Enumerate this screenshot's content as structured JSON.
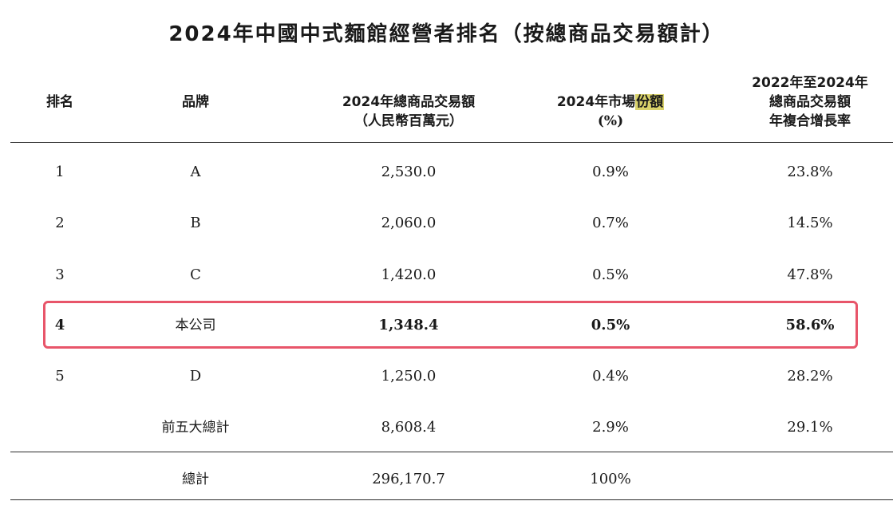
{
  "title": "2024年中國中式麵館經營者排名（按總商品交易額計）",
  "headers": {
    "rank": "排名",
    "brand": "品牌",
    "gmv_line1": "2024年總商品交易額",
    "gmv_line2": "（人民幣百萬元）",
    "share_prefix": "2024年市場",
    "share_highlight": "份額",
    "share_line2": "(%)",
    "cagr_line1": "2022年至2024年",
    "cagr_line2": "總商品交易額",
    "cagr_line3": "年複合增長率"
  },
  "rows": [
    {
      "rank": "1",
      "brand": "A",
      "gmv": "2,530.0",
      "share": "0.9%",
      "cagr": "23.8%"
    },
    {
      "rank": "2",
      "brand": "B",
      "gmv": "2,060.0",
      "share": "0.7%",
      "cagr": "14.5%"
    },
    {
      "rank": "3",
      "brand": "C",
      "gmv": "1,420.0",
      "share": "0.5%",
      "cagr": "47.8%"
    },
    {
      "rank": "4",
      "brand": "本公司",
      "gmv": "1,348.4",
      "share": "0.5%",
      "cagr": "58.6%"
    },
    {
      "rank": "5",
      "brand": "D",
      "gmv": "1,250.0",
      "share": "0.4%",
      "cagr": "28.2%"
    },
    {
      "rank": "",
      "brand": "前五大總計",
      "gmv": "8,608.4",
      "share": "2.9%",
      "cagr": "29.1%"
    }
  ],
  "total": {
    "label": "總計",
    "gmv": "296,170.7",
    "share": "100%"
  },
  "colors": {
    "highlight_box": "#e8556a",
    "text_highlight": "#d9d26a",
    "rule": "#2b2b2b"
  }
}
